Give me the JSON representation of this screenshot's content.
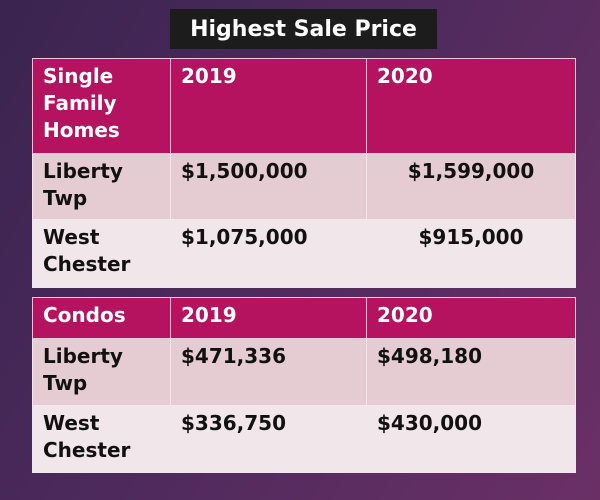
{
  "title": "Highest Sale Price",
  "tables": [
    {
      "header": [
        "Single Family Homes",
        "2019",
        "2020"
      ],
      "rows": [
        [
          "Liberty Twp",
          "$1,500,000",
          "$1,599,000"
        ],
        [
          "West Chester",
          "$1,075,000",
          "$915,000"
        ]
      ]
    },
    {
      "header": [
        "Condos",
        "2019",
        "2020"
      ],
      "rows": [
        [
          "Liberty Twp",
          "$471,336",
          "$498,180"
        ],
        [
          "West Chester",
          "$336,750",
          "$430,000"
        ]
      ]
    }
  ],
  "colors": {
    "header": "#b5125f",
    "row_odd": "#e5ccd3",
    "row_even": "#f1e6ea"
  }
}
